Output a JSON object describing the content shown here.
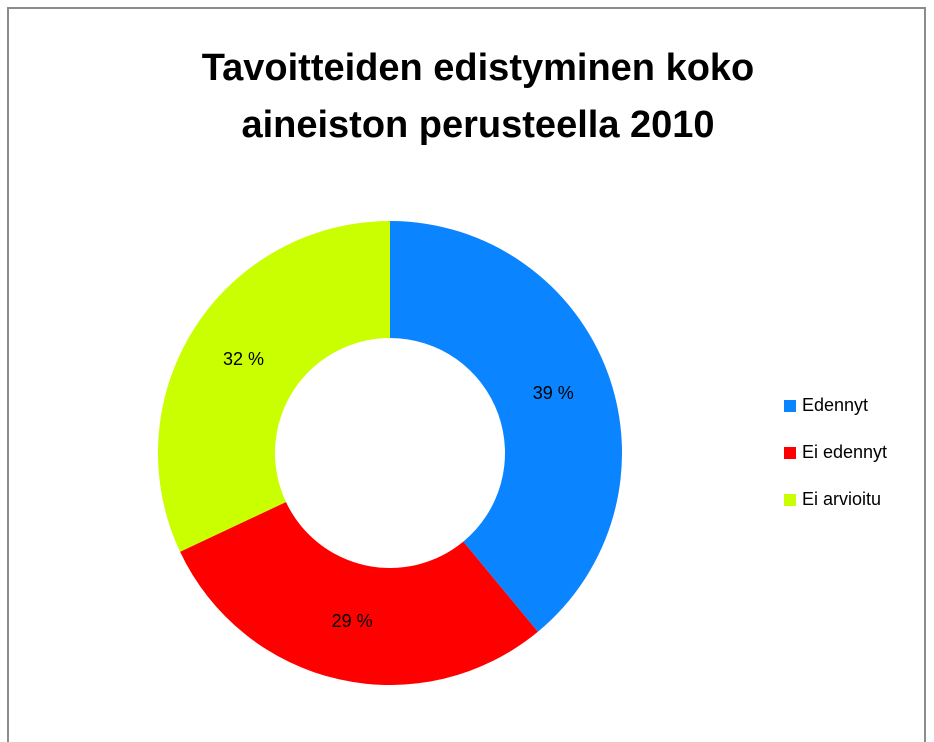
{
  "chart_data": {
    "type": "donut",
    "title": [
      "Tavoitteiden edistyminen koko",
      "aineiston perusteella 2010"
    ],
    "categories": [
      "Edennyt",
      "Ei edennyt",
      "Ei arvioitu"
    ],
    "values": [
      39,
      29,
      32
    ],
    "value_labels": [
      "39 %",
      "29 %",
      "32 %"
    ],
    "colors": [
      "#0a84ff",
      "#ff0000",
      "#c9ff00"
    ],
    "legend": "right"
  }
}
